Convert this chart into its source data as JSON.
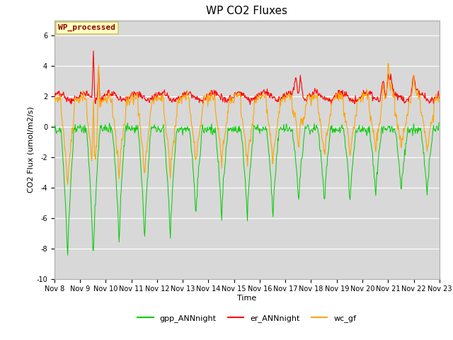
{
  "title": "WP CO2 Fluxes",
  "xlabel": "Time",
  "ylabel": "CO2 Flux (umol/m2/s)",
  "ylim": [
    -10,
    7
  ],
  "yticks": [
    -10,
    -8,
    -6,
    -4,
    -2,
    0,
    2,
    4,
    6
  ],
  "n_days": 15,
  "x_tick_labels": [
    "Nov 8",
    "Nov 9",
    "Nov 10",
    "Nov 11",
    "Nov 12",
    "Nov 13",
    "Nov 14",
    "Nov 15",
    "Nov 16",
    "Nov 17",
    "Nov 18",
    "Nov 19",
    "Nov 20",
    "Nov 21",
    "Nov 22",
    "Nov 23"
  ],
  "legend_label": "WP_processed",
  "legend_label_color": "#8B0000",
  "legend_box_facecolor": "#FFFFC0",
  "legend_box_edgecolor": "#CCCC66",
  "line_gpp_color": "#00CC00",
  "line_er_color": "#FF0000",
  "line_wc_color": "#FFA500",
  "fig_facecolor": "#FFFFFF",
  "plot_bg_color": "#D8D8D8",
  "grid_color": "#FFFFFF",
  "title_fontsize": 11,
  "axis_label_fontsize": 8,
  "tick_fontsize": 7,
  "legend_fontsize": 8
}
